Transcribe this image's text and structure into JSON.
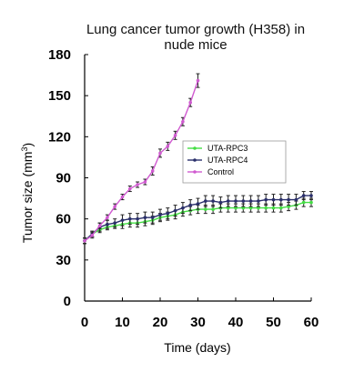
{
  "chart_data": {
    "type": "line",
    "title_lines": [
      "Lung cancer tumor growth (H358) in",
      "nude mice"
    ],
    "xlabel": "Time (days)",
    "ylabel": "Tumor size (mm",
    "ylabel_superscript": "3",
    "ylabel_close": ")",
    "xlim": [
      0,
      60
    ],
    "ylim": [
      0,
      180
    ],
    "xticks": [
      "0",
      "10",
      "20",
      "30",
      "40",
      "50",
      "60"
    ],
    "yticks": [
      "0",
      "30",
      "60",
      "90",
      "120",
      "150",
      "180"
    ],
    "legend_position": "center-right",
    "grid": false,
    "series": [
      {
        "name": "UTA-RPC3",
        "color": "#44dd44",
        "x": [
          0,
          2,
          4,
          6,
          8,
          10,
          12,
          14,
          16,
          18,
          20,
          22,
          24,
          26,
          28,
          30,
          32,
          34,
          36,
          38,
          40,
          42,
          44,
          46,
          48,
          50,
          52,
          54,
          56,
          58,
          60
        ],
        "y": [
          44,
          49,
          52,
          54,
          55,
          56,
          57,
          57,
          58,
          59,
          61,
          62,
          63,
          65,
          66,
          67,
          67,
          67,
          68,
          68,
          68,
          68,
          68,
          68,
          68,
          68,
          68,
          69,
          70,
          72,
          72
        ],
        "err": [
          2,
          2,
          2,
          2,
          2,
          3,
          3,
          3,
          3,
          3,
          3,
          3,
          3,
          3,
          3,
          3,
          3,
          3,
          3,
          3,
          3,
          3,
          3,
          3,
          3,
          3,
          3,
          3,
          3,
          3,
          3
        ]
      },
      {
        "name": "UTA-RPC4",
        "color": "#2a2f6b",
        "x": [
          0,
          2,
          4,
          6,
          8,
          10,
          12,
          14,
          16,
          18,
          20,
          22,
          24,
          26,
          28,
          30,
          32,
          34,
          36,
          38,
          40,
          42,
          44,
          46,
          48,
          50,
          52,
          54,
          56,
          58,
          60
        ],
        "y": [
          44,
          49,
          54,
          56,
          57,
          59,
          60,
          60,
          61,
          61,
          63,
          64,
          66,
          68,
          70,
          71,
          73,
          73,
          72,
          73,
          73,
          73,
          73,
          73,
          74,
          74,
          74,
          74,
          74,
          77,
          77
        ],
        "err": [
          2,
          2,
          3,
          3,
          3,
          4,
          4,
          4,
          4,
          4,
          4,
          4,
          4,
          4,
          4,
          4,
          4,
          4,
          4,
          4,
          4,
          4,
          4,
          4,
          4,
          4,
          4,
          4,
          4,
          3,
          3
        ]
      },
      {
        "name": "Control",
        "color": "#d05ad0",
        "x": [
          0,
          2,
          4,
          6,
          8,
          10,
          12,
          14,
          16,
          18,
          20,
          22,
          24,
          26,
          28,
          30
        ],
        "y": [
          44,
          48,
          55,
          61,
          69,
          76,
          82,
          85,
          87,
          95,
          108,
          113,
          121,
          131,
          145,
          161
        ],
        "err": [
          2,
          2,
          2,
          2,
          2,
          2,
          2,
          2,
          2,
          3,
          3,
          3,
          3,
          3,
          3,
          5
        ]
      }
    ]
  },
  "colors": {
    "axis": "#000000"
  }
}
